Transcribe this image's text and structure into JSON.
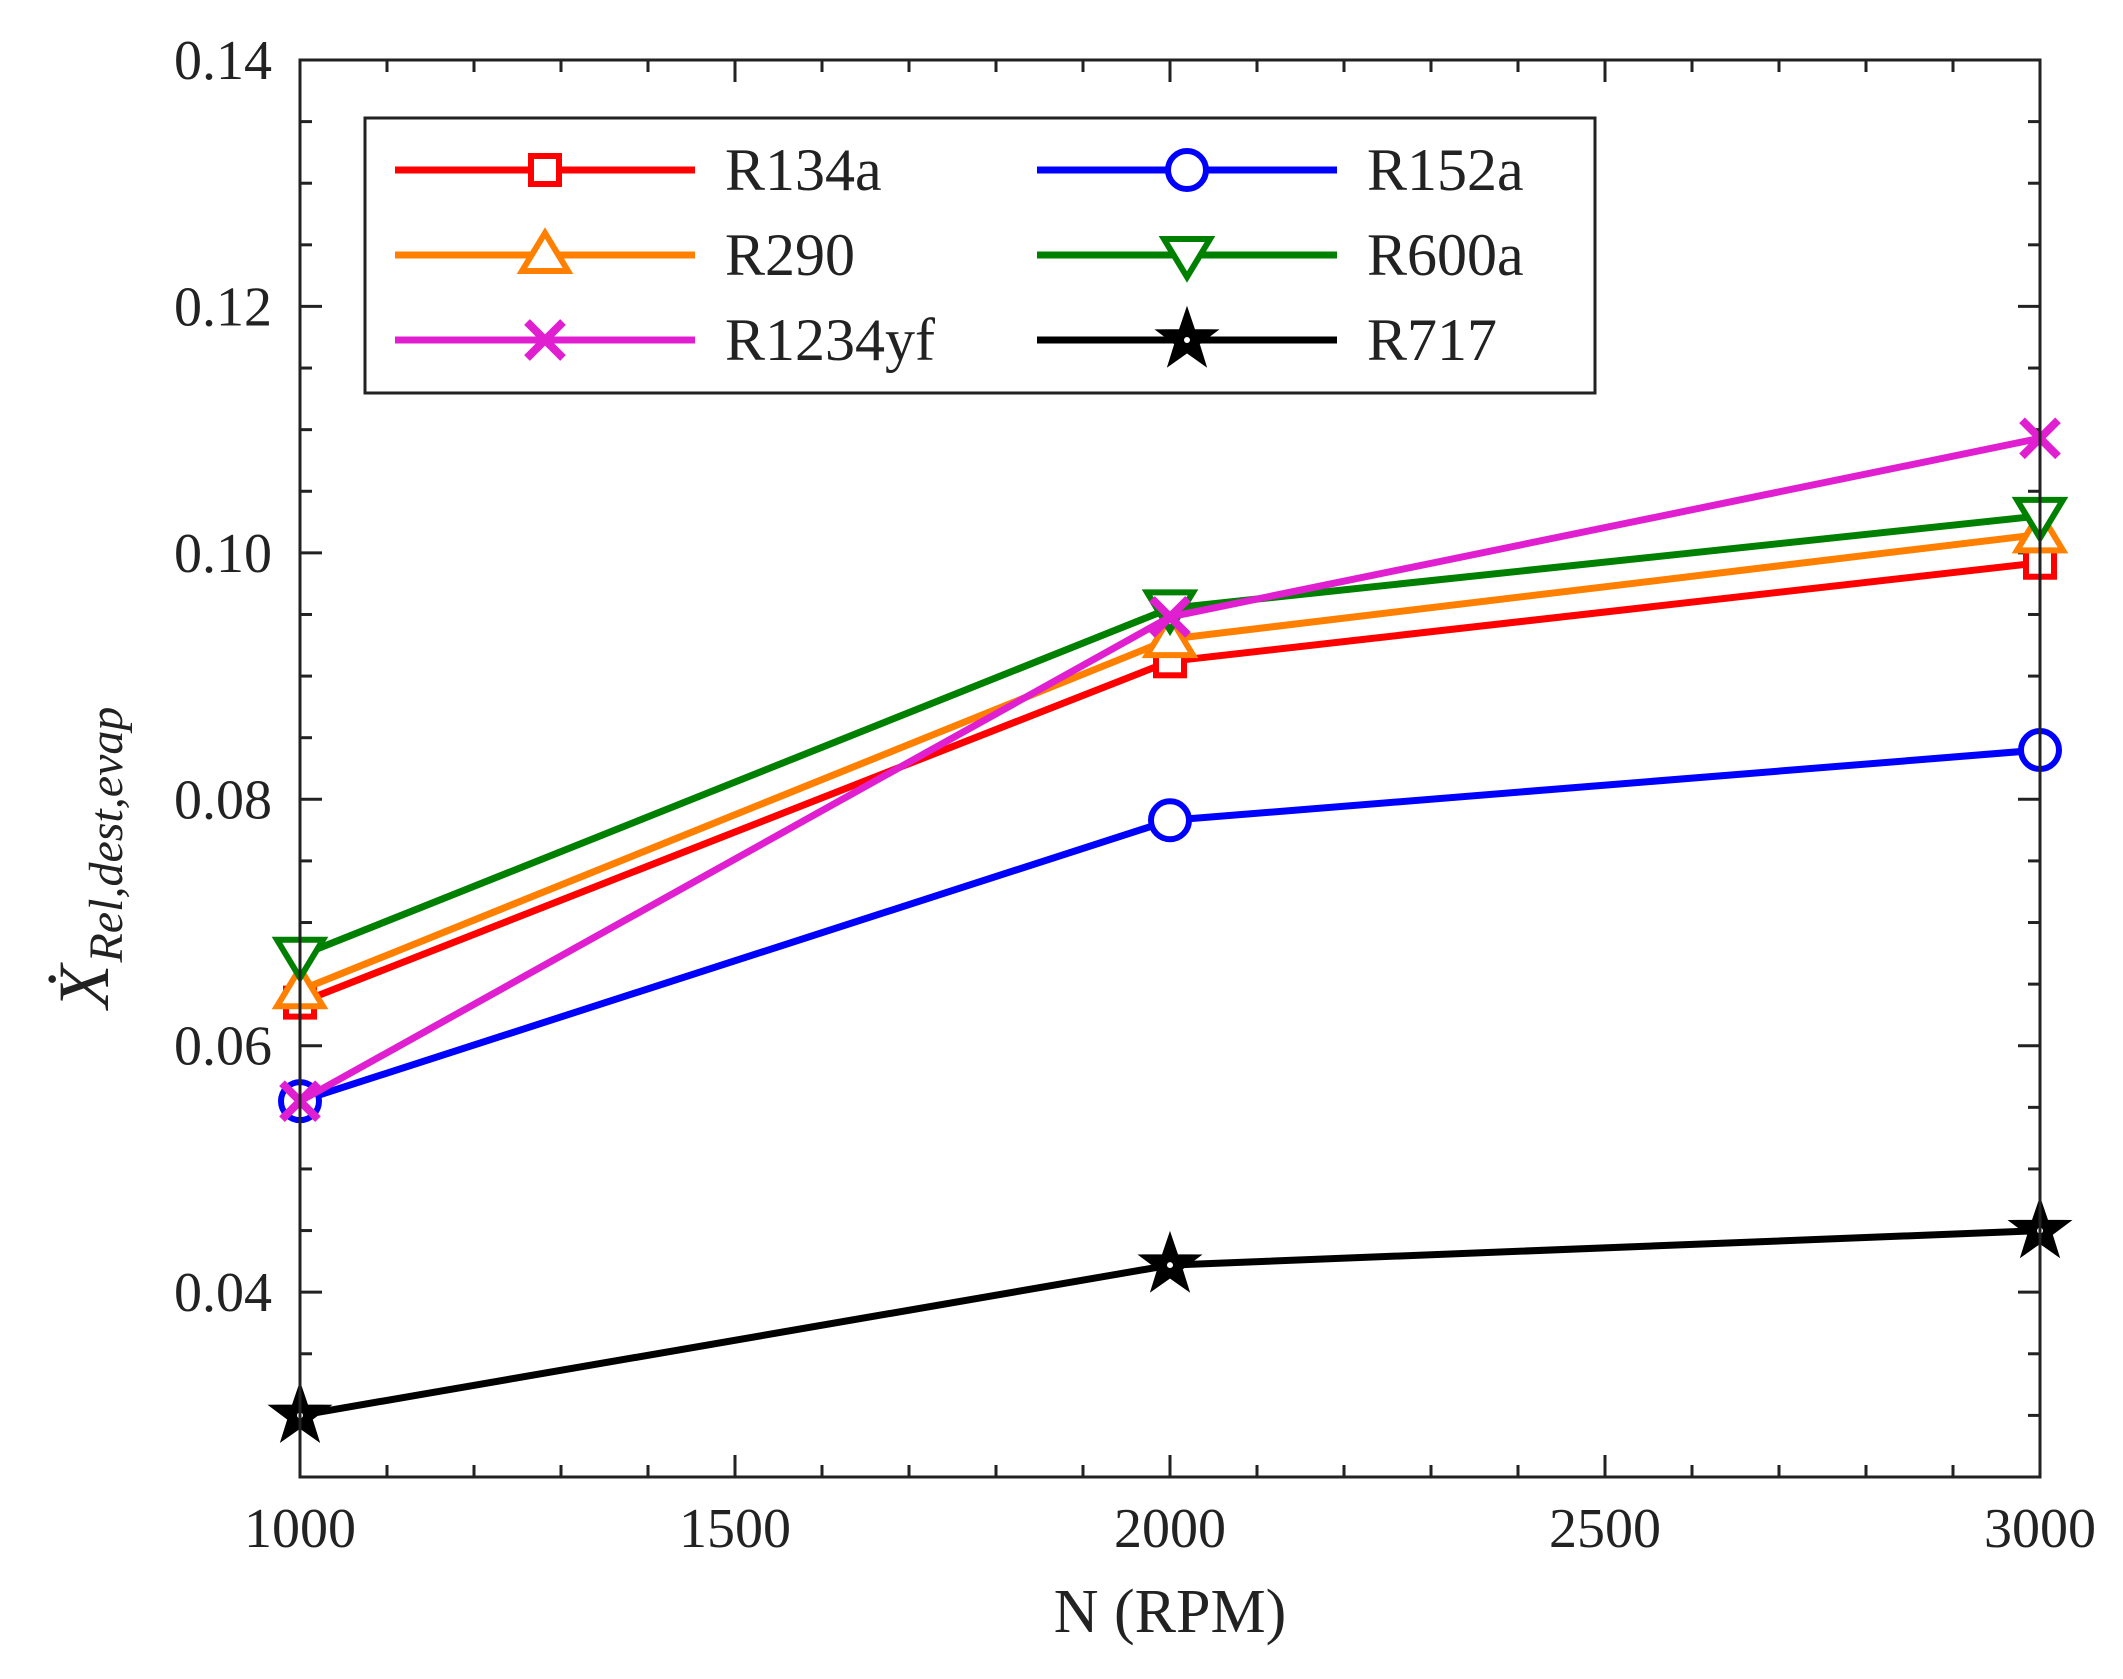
{
  "chart_data": {
    "type": "line",
    "xlabel": "N (RPM)",
    "ylabel": {
      "main": "Ẋ",
      "subscript": "Rel,dest,evap"
    },
    "xlim": [
      1000,
      3000
    ],
    "ylim": [
      0.025,
      0.14
    ],
    "x_ticks": [
      1000,
      1500,
      2000,
      2500,
      3000
    ],
    "x_tick_labels": [
      "1000",
      "1500",
      "2000",
      "2500",
      "3000"
    ],
    "x_minor_step": 100,
    "y_ticks": [
      0.04,
      0.06,
      0.08,
      0.1,
      0.12,
      0.14
    ],
    "y_tick_labels": [
      "0.04",
      "0.06",
      "0.08",
      "0.10",
      "0.12",
      "0.14"
    ],
    "y_minor_step": 0.005,
    "grid": false,
    "legend_position": "top-left",
    "legend_columns": 2,
    "x": [
      1000,
      2000,
      3000
    ],
    "series": [
      {
        "name": "R134a",
        "values": [
          0.0635,
          0.0912,
          0.0992
        ],
        "color": "#ff0000",
        "marker": "square"
      },
      {
        "name": "R152a",
        "values": [
          0.0555,
          0.0783,
          0.084
        ],
        "color": "#0000ff",
        "marker": "circle"
      },
      {
        "name": "R290",
        "values": [
          0.0645,
          0.093,
          0.1015
        ],
        "color": "#ff8000",
        "marker": "triangle-up"
      },
      {
        "name": "R600a",
        "values": [
          0.0673,
          0.0955,
          0.103
        ],
        "color": "#008000",
        "marker": "triangle-down"
      },
      {
        "name": "R1234yf",
        "values": [
          0.0555,
          0.0948,
          0.1093
        ],
        "color": "#e020d0",
        "marker": "x"
      },
      {
        "name": "R717",
        "values": [
          0.03,
          0.0422,
          0.045
        ],
        "color": "#000000",
        "marker": "star"
      }
    ]
  }
}
